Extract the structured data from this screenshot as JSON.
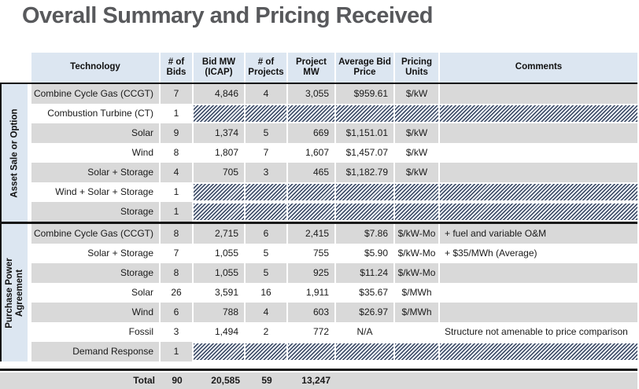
{
  "title": "Overall Summary and Pricing Received",
  "colors": {
    "header_bg": "#dce6f1",
    "row_gray": "#d9d9d9",
    "hatch_dark": "#32415d",
    "hatch_light": "#e9edf3",
    "title_text": "#58595c",
    "border_black": "#141414"
  },
  "columns": [
    "Technology",
    "# of\nBids",
    "Bid MW\n(ICAP)",
    "# of\nProjects",
    "Project\nMW",
    "Average Bid\nPrice",
    "Pricing\nUnits",
    "Comments"
  ],
  "groups": [
    {
      "label": "Asset Sale or Option",
      "rows": [
        {
          "technology": "Combine Cycle Gas (CCGT)",
          "bids": "7",
          "bid_mw": "4,846",
          "projects": "4",
          "project_mw": "3,055",
          "avg_price": "$959.61",
          "units": "$/kW",
          "comment": "",
          "hatched": false
        },
        {
          "technology": "Combustion Turbine (CT)",
          "bids": "1",
          "bid_mw": "",
          "projects": "",
          "project_mw": "",
          "avg_price": "",
          "units": "",
          "comment": "",
          "hatched": true
        },
        {
          "technology": "Solar",
          "bids": "9",
          "bid_mw": "1,374",
          "projects": "5",
          "project_mw": "669",
          "avg_price": "$1,151.01",
          "units": "$/kW",
          "comment": "",
          "hatched": false
        },
        {
          "technology": "Wind",
          "bids": "8",
          "bid_mw": "1,807",
          "projects": "7",
          "project_mw": "1,607",
          "avg_price": "$1,457.07",
          "units": "$/kW",
          "comment": "",
          "hatched": false
        },
        {
          "technology": "Solar + Storage",
          "bids": "4",
          "bid_mw": "705",
          "projects": "3",
          "project_mw": "465",
          "avg_price": "$1,182.79",
          "units": "$/kW",
          "comment": "",
          "hatched": false
        },
        {
          "technology": "Wind + Solar + Storage",
          "bids": "1",
          "bid_mw": "",
          "projects": "",
          "project_mw": "",
          "avg_price": "",
          "units": "",
          "comment": "",
          "hatched": true
        },
        {
          "technology": "Storage",
          "bids": "1",
          "bid_mw": "",
          "projects": "",
          "project_mw": "",
          "avg_price": "",
          "units": "",
          "comment": "",
          "hatched": true
        }
      ]
    },
    {
      "label": "Purchase Power\nAgreement",
      "rows": [
        {
          "technology": "Combine Cycle Gas (CCGT)",
          "bids": "8",
          "bid_mw": "2,715",
          "projects": "6",
          "project_mw": "2,415",
          "avg_price": "$7.86",
          "units": "$/kW-Mo",
          "comment": "+ fuel and variable O&M",
          "hatched": false
        },
        {
          "technology": "Solar + Storage",
          "bids": "7",
          "bid_mw": "1,055",
          "projects": "5",
          "project_mw": "755",
          "avg_price": "$5.90",
          "units": "$/kW-Mo",
          "comment": "+ $35/MWh (Average)",
          "hatched": false
        },
        {
          "technology": "Storage",
          "bids": "8",
          "bid_mw": "1,055",
          "projects": "5",
          "project_mw": "925",
          "avg_price": "$11.24",
          "units": "$/kW-Mo",
          "comment": "",
          "hatched": false
        },
        {
          "technology": "Solar",
          "bids": "26",
          "bid_mw": "3,591",
          "projects": "16",
          "project_mw": "1,911",
          "avg_price": "$35.67",
          "units": "$/MWh",
          "comment": "",
          "hatched": false
        },
        {
          "technology": "Wind",
          "bids": "6",
          "bid_mw": "788",
          "projects": "4",
          "project_mw": "603",
          "avg_price": "$26.97",
          "units": "$/MWh",
          "comment": "",
          "hatched": false
        },
        {
          "technology": "Fossil",
          "bids": "3",
          "bid_mw": "1,494",
          "projects": "2",
          "project_mw": "772",
          "avg_price": "N/A",
          "units": "",
          "comment": "Structure not amenable to price comparison",
          "hatched": false,
          "price_centered": true
        },
        {
          "technology": "Demand Response",
          "bids": "1",
          "bid_mw": "",
          "projects": "",
          "project_mw": "",
          "avg_price": "",
          "units": "",
          "comment": "",
          "hatched": true
        }
      ]
    }
  ],
  "total": {
    "label": "Total",
    "bids": "90",
    "bid_mw": "20,585",
    "projects": "59",
    "project_mw": "13,247"
  }
}
